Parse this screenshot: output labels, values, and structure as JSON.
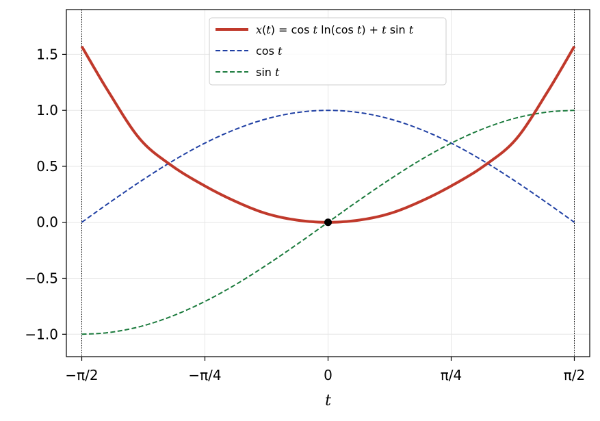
{
  "chart_data": {
    "type": "line",
    "title": "",
    "xlabel": "t",
    "ylabel": "",
    "xlim": [
      -1.669,
      1.669
    ],
    "ylim": [
      -1.2,
      1.9
    ],
    "grid": true,
    "legend_position": "top-center",
    "x_ticks": [
      {
        "value": -1.5708,
        "label": "−π/2"
      },
      {
        "value": -0.7854,
        "label": "−π/4"
      },
      {
        "value": 0,
        "label": "0"
      },
      {
        "value": 0.7854,
        "label": "π/4"
      },
      {
        "value": 1.5708,
        "label": "π/2"
      }
    ],
    "y_ticks": [
      {
        "value": -1.0,
        "label": "−1.0"
      },
      {
        "value": -0.5,
        "label": "−0.5"
      },
      {
        "value": 0.0,
        "label": "0.0"
      },
      {
        "value": 0.5,
        "label": "0.5"
      },
      {
        "value": 1.0,
        "label": "1.0"
      },
      {
        "value": 1.5,
        "label": "1.5"
      }
    ],
    "vertical_lines": [
      {
        "x": -1.5708,
        "style": "dotted",
        "color": "#000000"
      },
      {
        "x": 1.5708,
        "style": "dotted",
        "color": "#000000"
      }
    ],
    "marked_points": [
      {
        "x": 0,
        "y": 0,
        "color": "#000000"
      }
    ],
    "series": [
      {
        "name": "x(t) = cos t ln(cos t) + t sin t",
        "color": "#c0392b",
        "style": "solid",
        "x": [
          -1.5708,
          -1.4,
          -1.2,
          -1.0,
          -0.8,
          -0.6,
          -0.4,
          -0.2,
          0.0,
          0.2,
          0.4,
          0.6,
          0.8,
          1.0,
          1.2,
          1.4,
          1.5708
        ],
        "y": [
          1.571,
          1.166,
          0.744,
          0.509,
          0.336,
          0.193,
          0.081,
          0.02,
          0.0,
          0.02,
          0.081,
          0.193,
          0.336,
          0.509,
          0.744,
          1.166,
          1.571
        ]
      },
      {
        "name": "cos t",
        "color": "#1f3fa3",
        "style": "dashed",
        "x": [
          -1.5708,
          -1.4,
          -1.2,
          -1.0,
          -0.8,
          -0.6,
          -0.4,
          -0.2,
          0.0,
          0.2,
          0.4,
          0.6,
          0.8,
          1.0,
          1.2,
          1.4,
          1.5708
        ],
        "y": [
          0.0,
          0.17,
          0.362,
          0.54,
          0.697,
          0.825,
          0.921,
          0.98,
          1.0,
          0.98,
          0.921,
          0.825,
          0.697,
          0.54,
          0.362,
          0.17,
          0.0
        ]
      },
      {
        "name": "sin t",
        "color": "#1a7a3c",
        "style": "dashed",
        "x": [
          -1.5708,
          -1.4,
          -1.2,
          -1.0,
          -0.8,
          -0.6,
          -0.4,
          -0.2,
          0.0,
          0.2,
          0.4,
          0.6,
          0.8,
          1.0,
          1.2,
          1.4,
          1.5708
        ],
        "y": [
          -1.0,
          -0.985,
          -0.932,
          -0.841,
          -0.717,
          -0.565,
          -0.389,
          -0.199,
          0.0,
          0.199,
          0.389,
          0.565,
          0.717,
          0.841,
          0.932,
          0.985,
          1.0
        ]
      }
    ],
    "legend": [
      {
        "text_parts": [
          [
            "x",
            true
          ],
          [
            "(",
            false
          ],
          [
            "t",
            true
          ],
          [
            ") = cos ",
            false
          ],
          [
            "t",
            true
          ],
          [
            " ln(cos ",
            false
          ],
          [
            "t",
            true
          ],
          [
            ") + ",
            false
          ],
          [
            "t",
            true
          ],
          [
            " sin ",
            false
          ],
          [
            "t",
            true
          ]
        ]
      },
      {
        "text_parts": [
          [
            "cos ",
            false
          ],
          [
            "t",
            true
          ]
        ]
      },
      {
        "text_parts": [
          [
            "sin ",
            false
          ],
          [
            "t",
            true
          ]
        ]
      }
    ]
  }
}
